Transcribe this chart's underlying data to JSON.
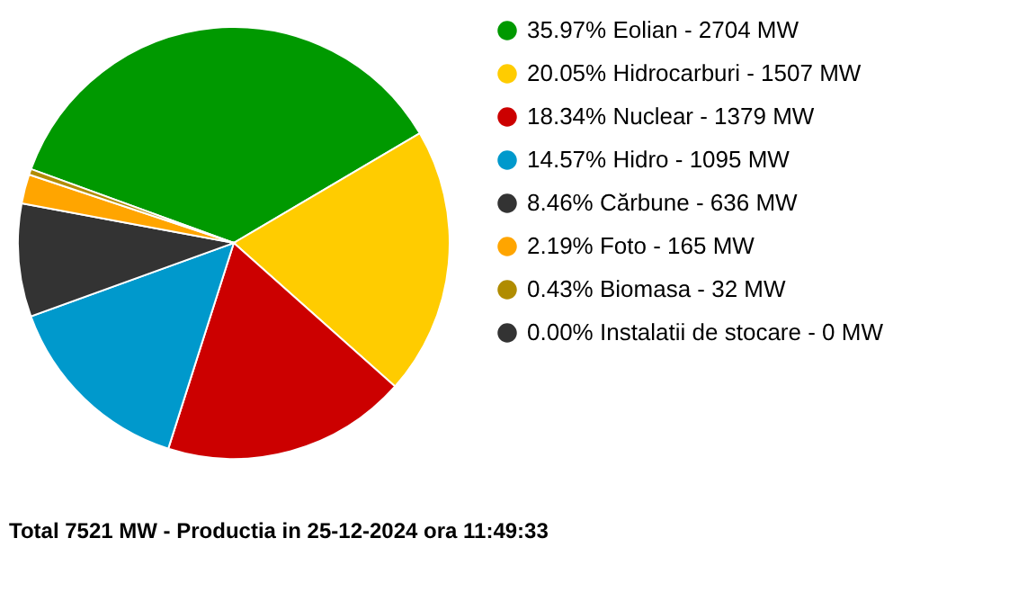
{
  "chart_data": {
    "type": "pie",
    "categories": [
      "35.97% Eolian - 2704 MW",
      "20.05% Hidrocarburi - 1507 MW",
      "18.34% Nuclear - 1379 MW",
      "14.57% Hidro - 1095 MW",
      "8.46% Cărbune - 636 MW",
      "2.19% Foto - 165 MW",
      "0.43% Biomasa - 32 MW",
      "0.00% Instalatii de stocare - 0 MW"
    ],
    "values": [
      35.97,
      20.05,
      18.34,
      14.57,
      8.46,
      2.19,
      0.43,
      0
    ],
    "colors": [
      "#009900",
      "#ffcc00",
      "#cc0000",
      "#0099cc",
      "#333333",
      "#ffa500",
      "#b08c00",
      "#333333"
    ],
    "legend": "right",
    "annotations": [
      "Total 7521 MW - Productia in 25-12-2024 ora 11:49:33"
    ]
  }
}
